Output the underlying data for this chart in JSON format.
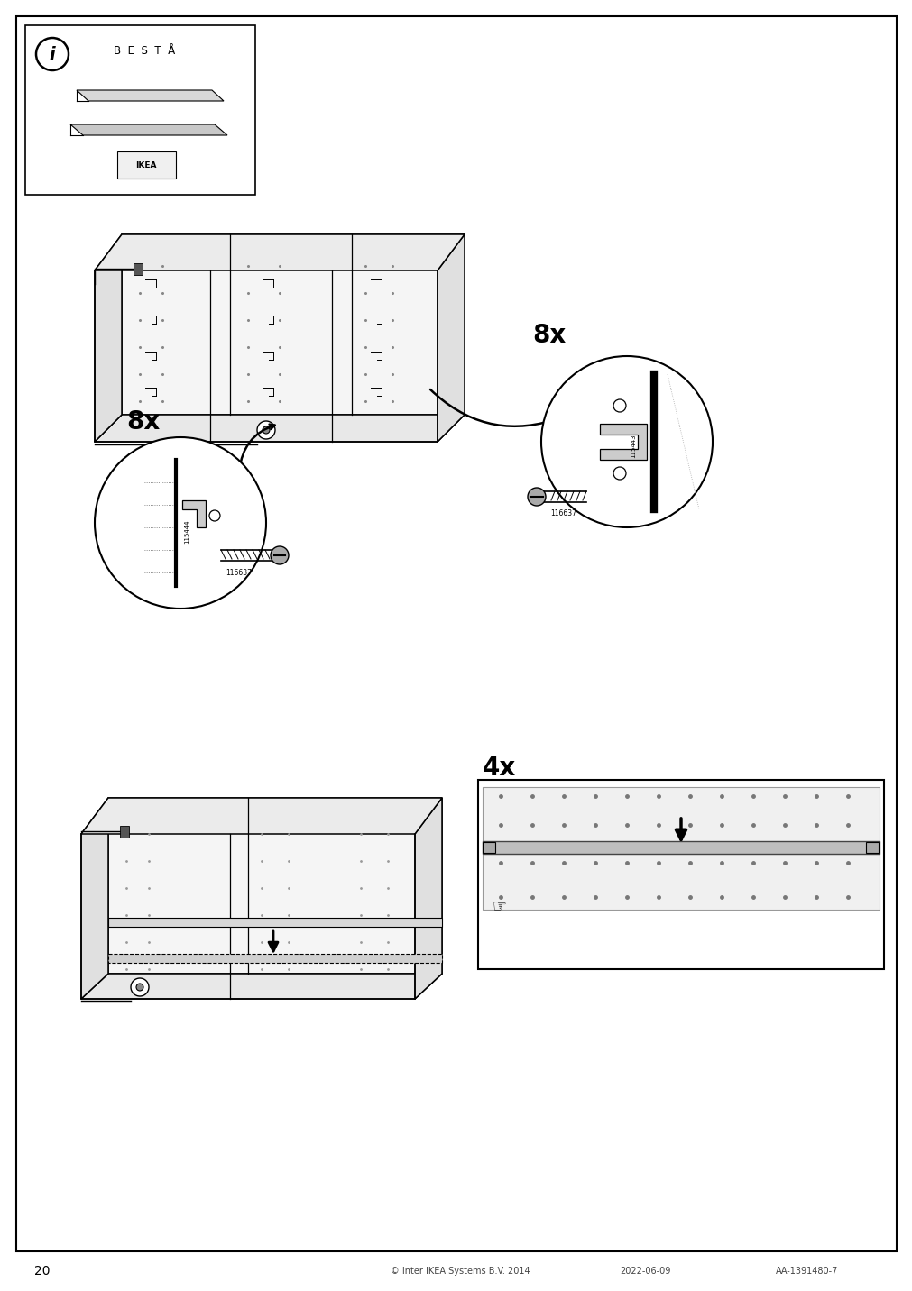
{
  "page_number": "20",
  "copyright_text": "© Inter IKEA Systems B.V. 2014",
  "date_text": "2022-06-09",
  "article_text": "AA-1391480-7",
  "background_color": "#ffffff",
  "border_color": "#000000",
  "line_color": "#000000",
  "info_box_title": "B  E  S  T  Å",
  "label_8x_top": "8x",
  "label_8x_bottom": "8x",
  "label_4x": "4x",
  "part_code_1": "115444",
  "part_code_2": "116637",
  "part_code_3": "115443",
  "part_code_4": "116637"
}
